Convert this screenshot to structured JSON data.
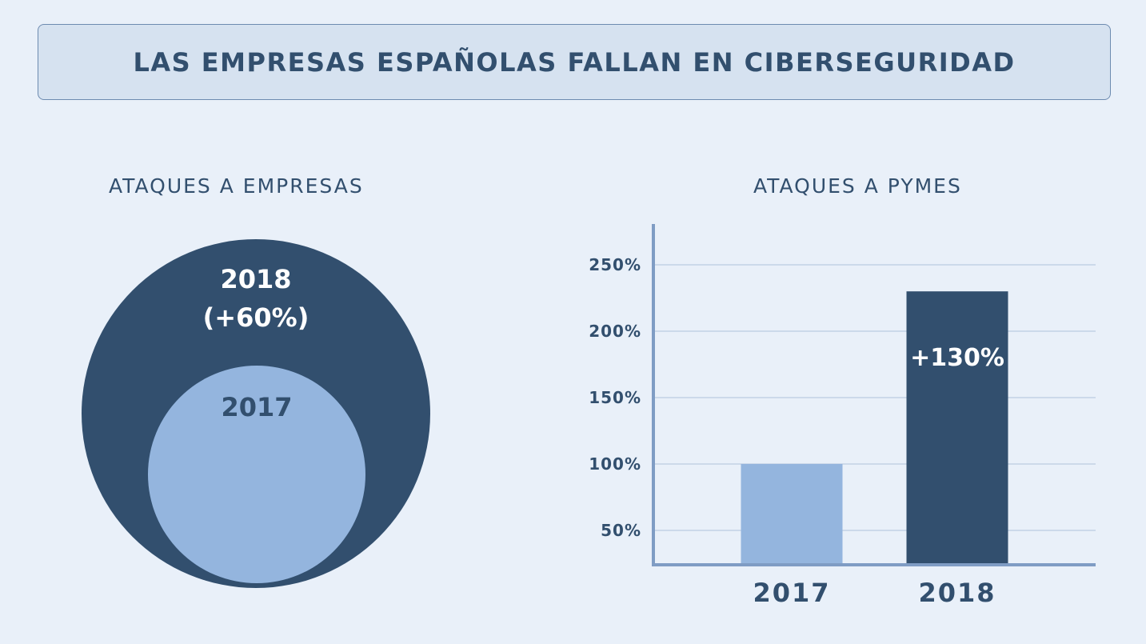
{
  "title": "LAS EMPRESAS ESPAÑOLAS FALLAN EN CIBERSEGURIDAD",
  "colors": {
    "background": "#e9f0f9",
    "dark": "#324f6e",
    "light": "#94b5de",
    "axis": "#7f9cc4",
    "grid": "#c3d1e6"
  },
  "chart_data": [
    {
      "type": "bubble",
      "title": "ATAQUES A EMPRESAS",
      "series": [
        {
          "name": "2018",
          "label": "(+60%)",
          "value": 160
        },
        {
          "name": "2017",
          "value": 100
        }
      ]
    },
    {
      "type": "bar",
      "title": "ATAQUES A PYMES",
      "categories": [
        "2017",
        "2018"
      ],
      "values": [
        100,
        230
      ],
      "data_labels": [
        "",
        "+130%"
      ],
      "yticks": [
        50,
        100,
        150,
        200,
        250
      ],
      "ytick_labels": [
        "50%",
        "100%",
        "150%",
        "200%",
        "250%"
      ],
      "ylim": [
        24,
        270
      ],
      "grid": true
    }
  ]
}
